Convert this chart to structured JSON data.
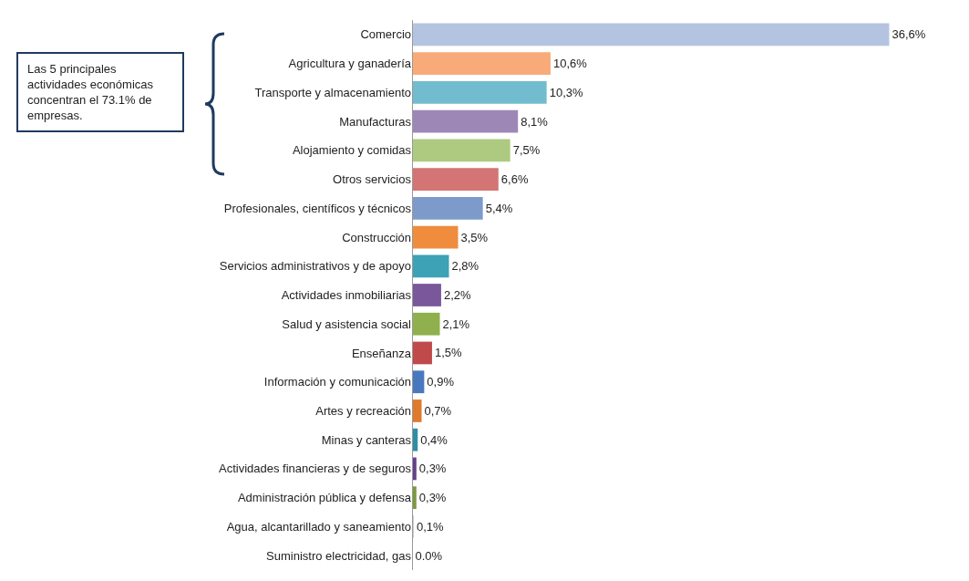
{
  "chart_data": {
    "type": "bar",
    "orientation": "horizontal",
    "categories": [
      "Comercio",
      "Agricultura y ganadería",
      "Transporte y almacenamiento",
      "Manufacturas",
      "Alojamiento y comidas",
      "Otros servicios",
      "Profesionales, científicos y técnicos",
      "Construcción",
      "Servicios administrativos y de apoyo",
      "Actividades inmobiliarias",
      "Salud y asistencia social",
      "Enseñanza",
      "Información y comunicación",
      "Artes y recreación",
      "Minas y canteras",
      "Actividades financieras y de seguros",
      "Administración pública y defensa",
      "Agua, alcantarillado y saneamiento",
      "Suministro electricidad, gas"
    ],
    "values": [
      36.6,
      10.6,
      10.3,
      8.1,
      7.5,
      6.6,
      5.4,
      3.5,
      2.8,
      2.2,
      2.1,
      1.5,
      0.9,
      0.7,
      0.4,
      0.3,
      0.3,
      0.1,
      0.0
    ],
    "value_labels": [
      "36,6%",
      "10,6%",
      "10,3%",
      "8,1%",
      "7,5%",
      "6,6%",
      "5,4%",
      "3,5%",
      "2,8%",
      "2,2%",
      "2,1%",
      "1,5%",
      "0,9%",
      "0,7%",
      "0,4%",
      "0,3%",
      "0,3%",
      "0,1%",
      "0.0%"
    ],
    "colors": [
      "#b4c3e0",
      "#f8ab78",
      "#72bccf",
      "#9d87b7",
      "#aeca80",
      "#d37574",
      "#7d9acb",
      "#ef8c3e",
      "#3da2b6",
      "#7a579a",
      "#8fb04c",
      "#c0494a",
      "#4a78bf",
      "#df7a2d",
      "#2f8ea3",
      "#64408a",
      "#7b9a3e",
      "#cccccc",
      "#cccccc"
    ],
    "tick_labels": "y",
    "annotations": [
      "Las 5 principales actividades económicas concentran el 73.1% de empresas."
    ]
  }
}
